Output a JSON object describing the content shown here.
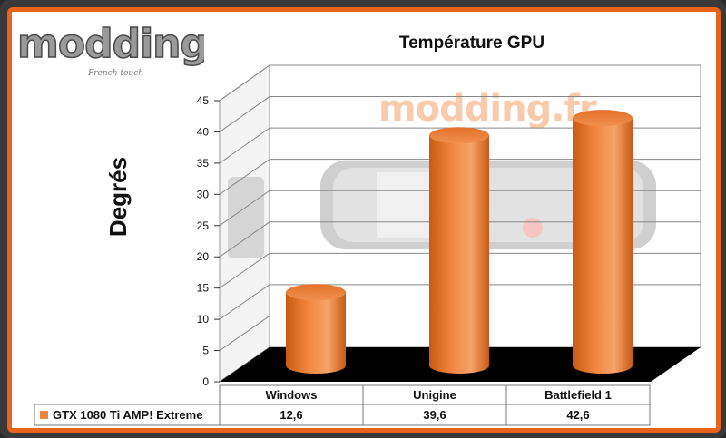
{
  "brand": {
    "logo": "modding.fr",
    "tagline": "French touch"
  },
  "watermark": "modding.fr",
  "colors": {
    "accent": "#e8641e",
    "bar": "#f0843c",
    "bar_dark": "#c85a14",
    "floor": "#000000"
  },
  "chart_data": {
    "type": "bar",
    "title": "Température GPU",
    "ylabel": "Degrés",
    "xlabel": "",
    "categories": [
      "Windows",
      "Unigine",
      "Battlefield 1"
    ],
    "series": [
      {
        "name": "GTX 1080 Ti AMP! Extreme",
        "values": [
          "12,6",
          "39,6",
          "42,6"
        ],
        "numeric": [
          12.6,
          39.6,
          42.6
        ]
      }
    ],
    "ylim": [
      0,
      45
    ],
    "yticks": [
      0,
      5,
      10,
      15,
      20,
      25,
      30,
      35,
      40,
      45
    ],
    "grid": true,
    "legend": "bottom-left data table"
  }
}
